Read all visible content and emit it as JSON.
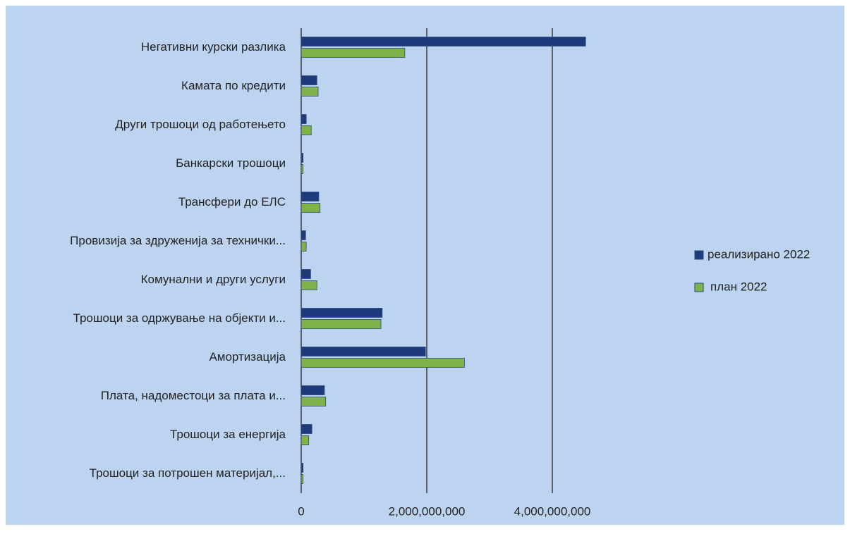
{
  "chart_data": {
    "type": "hbar",
    "categories": [
      "Негативни курски разлика",
      "Камата по кредити",
      "Други трошоци од работењето",
      "Банкарски трошоци",
      "Трансфери до ЕЛС",
      "Провизија за здруженија за технички...",
      "Комунални и други услуги",
      "Трошоци за одржување на објекти и...",
      "Амортизација",
      "Плата, надоместоци за плата и...",
      "Трошоци за енергија",
      "Трошоци за потрошен материјал,..."
    ],
    "series": [
      {
        "name": "реализирано 2022",
        "color": "#1f3a7a",
        "values": [
          4530000000,
          250000000,
          80000000,
          30000000,
          280000000,
          70000000,
          150000000,
          1290000000,
          1980000000,
          370000000,
          170000000,
          30000000
        ]
      },
      {
        "name": "план 2022",
        "color": "#7fb24a",
        "values": [
          1650000000,
          270000000,
          160000000,
          30000000,
          300000000,
          80000000,
          250000000,
          1270000000,
          2600000000,
          390000000,
          120000000,
          30000000
        ]
      }
    ],
    "xlim": [
      0,
      5000000000
    ],
    "xticks": [
      0,
      {
        "value": 2000000000,
        "label": "2,000,000,000"
      },
      {
        "value": 4000000000,
        "label": "4,000,000,000"
      }
    ],
    "grid": true,
    "legend": "right"
  }
}
